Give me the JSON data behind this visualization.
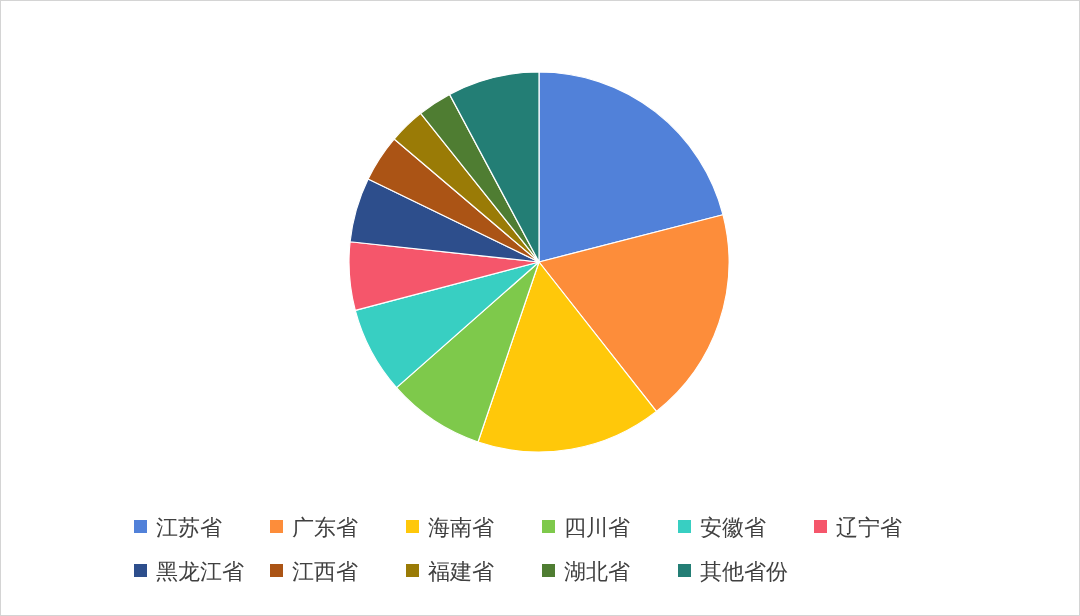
{
  "chart_data": {
    "type": "pie",
    "categories": [
      "江苏省",
      "广东省",
      "海南省",
      "四川省",
      "安徽省",
      "辽宁省",
      "黑龙江省",
      "江西省",
      "福建省",
      "湖北省",
      "其他省份"
    ],
    "values": [
      21.0,
      18.4,
      15.8,
      8.3,
      7.4,
      5.8,
      5.5,
      4.0,
      3.1,
      2.9,
      7.8
    ],
    "colors": [
      "#5181d9",
      "#fd8d3a",
      "#ffc80a",
      "#7ec94b",
      "#38cfc2",
      "#f5566b",
      "#2d4e8c",
      "#ab5415",
      "#9a7b06",
      "#4f7d32",
      "#237e75"
    ],
    "legend": "bottom"
  }
}
